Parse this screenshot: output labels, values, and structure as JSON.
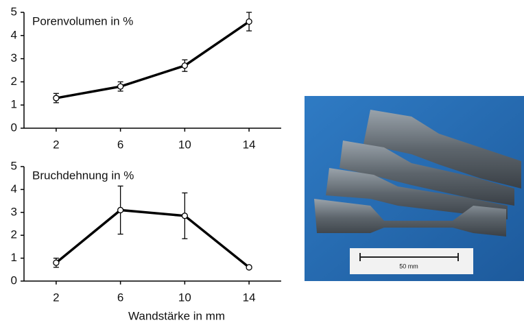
{
  "chart_data": [
    {
      "type": "line",
      "title": "Porenvolumen in %",
      "x": [
        2,
        6,
        10,
        14
      ],
      "values": [
        1.3,
        1.8,
        2.7,
        4.6
      ],
      "errors": [
        0.2,
        0.2,
        0.25,
        0.4
      ],
      "color": "#000000",
      "xlim": [
        0,
        16
      ],
      "xticks": [
        2,
        6,
        10,
        14
      ],
      "ylim": [
        0,
        5
      ],
      "yticks": [
        0,
        1,
        2,
        3,
        4,
        5
      ]
    },
    {
      "type": "line",
      "title": "Bruchdehnung in %",
      "xlabel": "Wandstärke in mm",
      "x": [
        2,
        6,
        10,
        14
      ],
      "values": [
        0.8,
        3.1,
        2.85,
        0.6
      ],
      "errors": [
        0.2,
        1.05,
        1.0,
        0.05
      ],
      "color": "#000000",
      "xlim": [
        0,
        16
      ],
      "xticks": [
        2,
        6,
        10,
        14
      ],
      "ylim": [
        0,
        5
      ],
      "yticks": [
        0,
        1,
        2,
        3,
        4,
        5
      ]
    }
  ],
  "photo": {
    "scale_label": "50 mm"
  }
}
